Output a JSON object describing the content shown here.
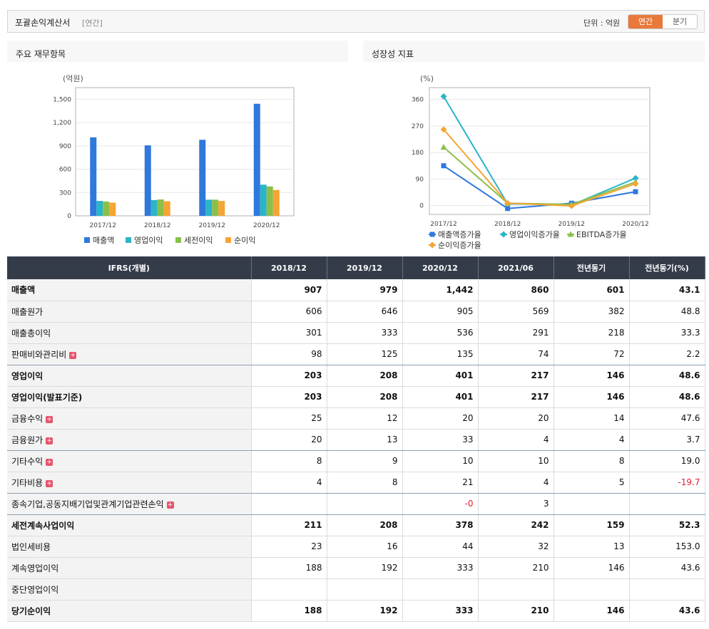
{
  "header": {
    "title": "포괄손익계산서",
    "period": "[연간]",
    "unit_label": "단위 : 억원",
    "tab_annual": "연간",
    "tab_quarter": "분기"
  },
  "left_panel": {
    "title": "주요 재무항목"
  },
  "right_panel": {
    "title": "성장성 지표"
  },
  "chart_data": [
    {
      "type": "bar",
      "ylabel": "(억원)",
      "categories": [
        "2017/12",
        "2018/12",
        "2019/12",
        "2020/12"
      ],
      "ylim": [
        0,
        1650
      ],
      "yticks": [
        "0",
        "300",
        "600",
        "900",
        "1,200",
        "1,500"
      ],
      "series": [
        {
          "name": "매출액",
          "color": "#2f78dc",
          "values": [
            1010,
            907,
            979,
            1442
          ]
        },
        {
          "name": "영업이익",
          "color": "#2bb5c8",
          "values": [
            192,
            203,
            208,
            401
          ]
        },
        {
          "name": "세전이익",
          "color": "#8cbf4a",
          "values": [
            184,
            211,
            208,
            378
          ]
        },
        {
          "name": "순이익",
          "color": "#f5a533",
          "values": [
            170,
            188,
            192,
            333
          ]
        }
      ],
      "legend": "bottom"
    },
    {
      "type": "line",
      "ylabel": "(%)",
      "categories": [
        "2017/12",
        "2018/12",
        "2019/12",
        "2020/12"
      ],
      "ylim": [
        -30,
        400
      ],
      "yticks": [
        "0",
        "90",
        "180",
        "270",
        "360"
      ],
      "series": [
        {
          "name": "매출액증가율",
          "color": "#2f78dc",
          "values": [
            135,
            -10,
            8,
            47
          ]
        },
        {
          "name": "영업이익증가율",
          "color": "#2bb5c8",
          "values": [
            370,
            6,
            2,
            93
          ]
        },
        {
          "name": "EBITDA증가율",
          "color": "#8cbf4a",
          "values": [
            198,
            8,
            4,
            80
          ]
        },
        {
          "name": "순이익증가율",
          "color": "#f5a533",
          "values": [
            258,
            8,
            -1,
            74
          ]
        }
      ],
      "legend": "bottom"
    }
  ],
  "table": {
    "columns": [
      "IFRS(개별)",
      "2018/12",
      "2019/12",
      "2020/12",
      "2021/06",
      "전년동기",
      "전년동기(%)"
    ],
    "rows": [
      {
        "label": "매출액",
        "values": [
          "907",
          "979",
          "1,442",
          "860",
          "601",
          "43.1"
        ],
        "bold": true,
        "plus": false
      },
      {
        "label": "매출원가",
        "values": [
          "606",
          "646",
          "905",
          "569",
          "382",
          "48.8"
        ],
        "bold": false,
        "plus": false
      },
      {
        "label": "매출총이익",
        "values": [
          "301",
          "333",
          "536",
          "291",
          "218",
          "33.3"
        ],
        "bold": false,
        "plus": false
      },
      {
        "label": "판매비와관리비",
        "values": [
          "98",
          "125",
          "135",
          "74",
          "72",
          "2.2"
        ],
        "bold": false,
        "plus": true,
        "sep": true
      },
      {
        "label": "영업이익",
        "values": [
          "203",
          "208",
          "401",
          "217",
          "146",
          "48.6"
        ],
        "bold": true,
        "plus": false
      },
      {
        "label": "영업이익(발표기준)",
        "values": [
          "203",
          "208",
          "401",
          "217",
          "146",
          "48.6"
        ],
        "bold": true,
        "plus": false
      },
      {
        "label": "금융수익",
        "values": [
          "25",
          "12",
          "20",
          "20",
          "14",
          "47.6"
        ],
        "bold": false,
        "plus": true
      },
      {
        "label": "금융원가",
        "values": [
          "20",
          "13",
          "33",
          "4",
          "4",
          "3.7"
        ],
        "bold": false,
        "plus": true,
        "sep": true
      },
      {
        "label": "기타수익",
        "values": [
          "8",
          "9",
          "10",
          "10",
          "8",
          "19.0"
        ],
        "bold": false,
        "plus": true
      },
      {
        "label": "기타비용",
        "values": [
          "4",
          "8",
          "21",
          "4",
          "5",
          "-19.7"
        ],
        "bold": false,
        "plus": true,
        "sep": true
      },
      {
        "label": "종속기업,공동지배기업및관계기업관련손익",
        "values": [
          "",
          "",
          "-0",
          "3",
          "",
          ""
        ],
        "bold": false,
        "plus": true,
        "sep": true
      },
      {
        "label": "세전계속사업이익",
        "values": [
          "211",
          "208",
          "378",
          "242",
          "159",
          "52.3"
        ],
        "bold": true,
        "plus": false
      },
      {
        "label": "법인세비용",
        "values": [
          "23",
          "16",
          "44",
          "32",
          "13",
          "153.0"
        ],
        "bold": false,
        "plus": false
      },
      {
        "label": "계속영업이익",
        "values": [
          "188",
          "192",
          "333",
          "210",
          "146",
          "43.6"
        ],
        "bold": false,
        "plus": false
      },
      {
        "label": "중단영업이익",
        "values": [
          "",
          "",
          "",
          "",
          "",
          ""
        ],
        "bold": false,
        "plus": false
      },
      {
        "label": "당기순이익",
        "values": [
          "188",
          "192",
          "333",
          "210",
          "146",
          "43.6"
        ],
        "bold": true,
        "plus": false
      }
    ]
  }
}
